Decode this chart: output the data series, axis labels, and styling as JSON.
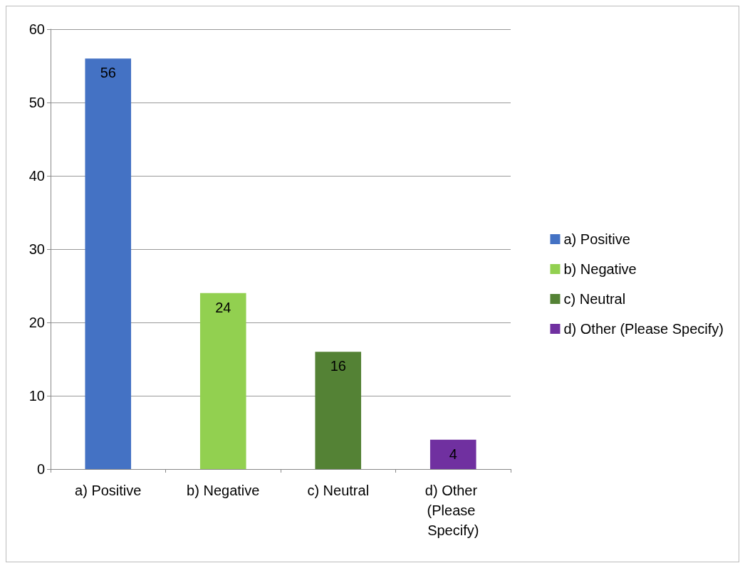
{
  "chart_data": {
    "type": "bar",
    "categories": [
      "a) Positive",
      "b) Negative",
      "c) Neutral",
      "d) Other (Please Specify)"
    ],
    "series": [
      {
        "name": "a) Positive",
        "color": "#4472c4",
        "values": [
          56,
          null,
          null,
          null
        ]
      },
      {
        "name": "b) Negative",
        "color": "#92d050",
        "values": [
          null,
          24,
          null,
          null
        ]
      },
      {
        "name": "c) Neutral",
        "color": "#548235",
        "values": [
          null,
          null,
          16,
          null
        ]
      },
      {
        "name": "d) Other (Please Specify)",
        "color": "#7030a0",
        "values": [
          null,
          null,
          null,
          4
        ]
      }
    ],
    "ylim": [
      0,
      60
    ],
    "yticks": [
      0,
      10,
      20,
      30,
      40,
      50,
      60
    ],
    "grid": "y",
    "data_labels": true,
    "legend": "right"
  }
}
